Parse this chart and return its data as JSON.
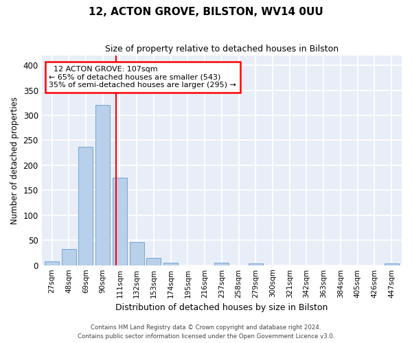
{
  "title1": "12, ACTON GROVE, BILSTON, WV14 0UU",
  "title2": "Size of property relative to detached houses in Bilston",
  "xlabel": "Distribution of detached houses by size in Bilston",
  "ylabel": "Number of detached properties",
  "bar_labels": [
    "27sqm",
    "48sqm",
    "69sqm",
    "90sqm",
    "111sqm",
    "132sqm",
    "153sqm",
    "174sqm",
    "195sqm",
    "216sqm",
    "237sqm",
    "258sqm",
    "279sqm",
    "300sqm",
    "321sqm",
    "342sqm",
    "363sqm",
    "384sqm",
    "405sqm",
    "426sqm",
    "447sqm"
  ],
  "bar_values": [
    8,
    32,
    237,
    320,
    175,
    46,
    15,
    5,
    0,
    0,
    5,
    0,
    3,
    0,
    0,
    0,
    0,
    0,
    0,
    0,
    3
  ],
  "bar_color": "#b8d0ea",
  "bar_edgecolor": "#6699cc",
  "vline_x": 3.8,
  "annotation_line1": "  12 ACTON GROVE: 107sqm",
  "annotation_line2": "← 65% of detached houses are smaller (543)",
  "annotation_line3": "35% of semi-detached houses are larger (295) →",
  "annotation_box_color": "white",
  "annotation_box_edgecolor": "red",
  "vline_color": "red",
  "ylim": [
    0,
    420
  ],
  "yticks": [
    0,
    50,
    100,
    150,
    200,
    250,
    300,
    350,
    400
  ],
  "background_color": "#e8eef8",
  "grid_color": "white",
  "footer1": "Contains HM Land Registry data © Crown copyright and database right 2024.",
  "footer2": "Contains public sector information licensed under the Open Government Licence v3.0."
}
